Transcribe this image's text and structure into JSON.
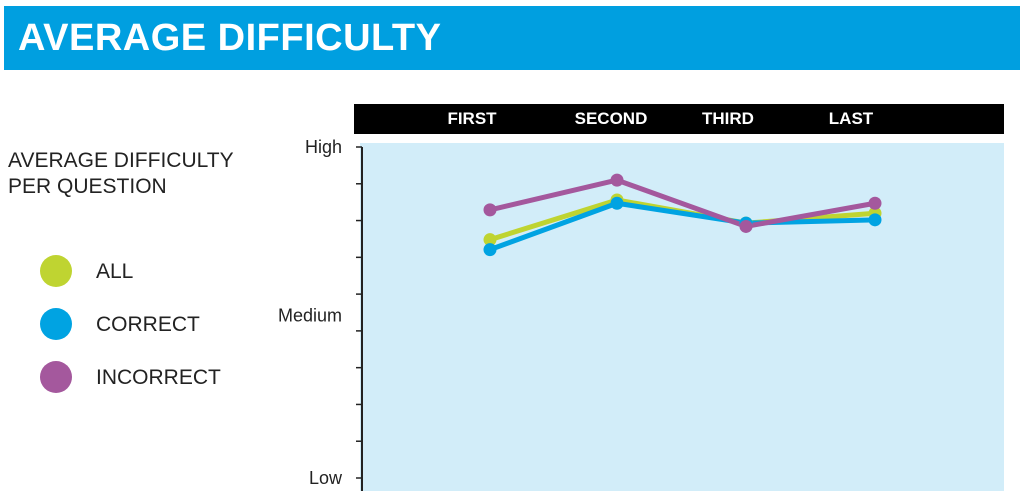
{
  "header": {
    "title": "AVERAGE DIFFICULTY"
  },
  "legend": {
    "title": "AVERAGE DIFFICULTY PER QUESTION",
    "items": [
      {
        "label": "ALL",
        "color": "#bfd431"
      },
      {
        "label": "CORRECT",
        "color": "#00a3e2"
      },
      {
        "label": "INCORRECT",
        "color": "#a4589d"
      }
    ]
  },
  "chart_data": {
    "type": "line",
    "categories": [
      "FIRST",
      "SECOND",
      "THIRD",
      "LAST"
    ],
    "y_tick_labels": [
      "Low",
      "Medium",
      "High"
    ],
    "ylim": [
      0,
      1
    ],
    "grid": false,
    "plot_background": "#d2edf9",
    "series": [
      {
        "name": "ALL",
        "color": "#bfd431",
        "values": [
          0.72,
          0.84,
          0.77,
          0.8
        ]
      },
      {
        "name": "CORRECT",
        "color": "#00a3e2",
        "values": [
          0.69,
          0.83,
          0.77,
          0.78
        ]
      },
      {
        "name": "INCORRECT",
        "color": "#a4589d",
        "values": [
          0.81,
          0.9,
          0.76,
          0.83
        ]
      }
    ]
  }
}
